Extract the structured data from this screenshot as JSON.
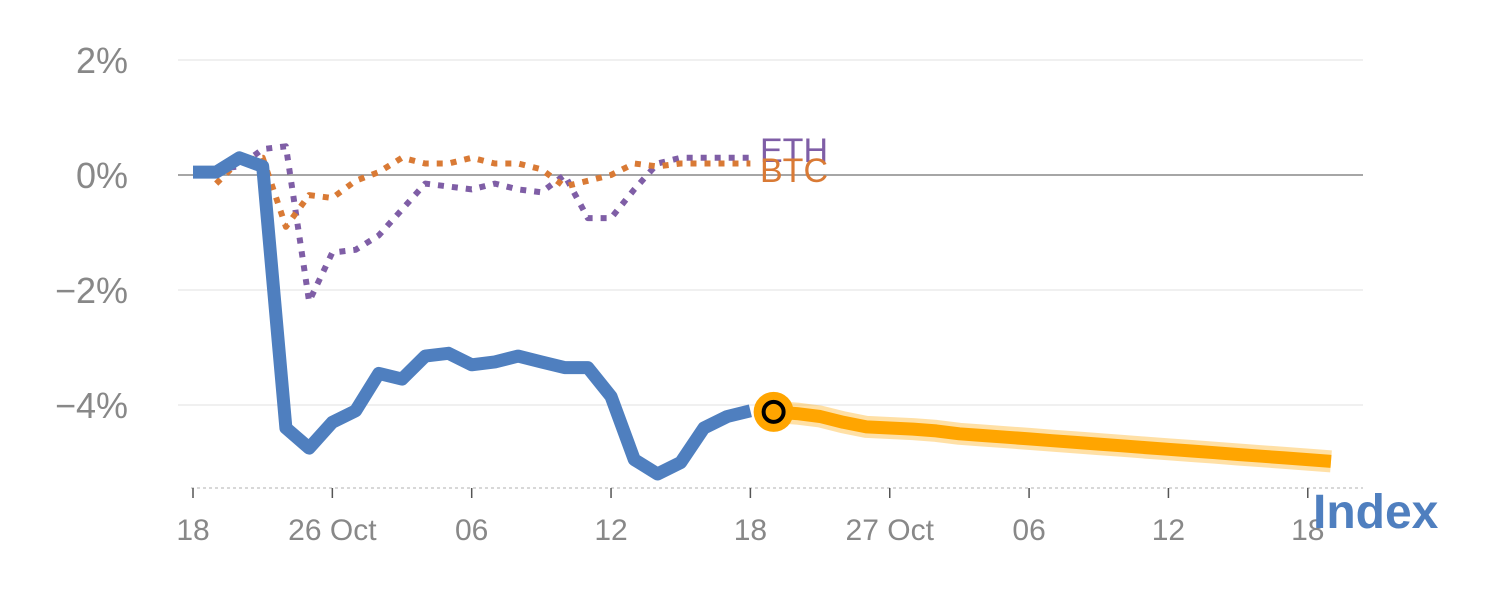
{
  "chart_data": {
    "type": "line",
    "title": "",
    "xlabel": "",
    "ylabel": "",
    "ylim": [
      -5.4,
      2.2
    ],
    "xlim": [
      0,
      49
    ],
    "y_ticks": [
      {
        "value": 2,
        "label": "2%"
      },
      {
        "value": 0,
        "label": "0%"
      },
      {
        "value": -2,
        "label": "−2%"
      },
      {
        "value": -4,
        "label": "−4%"
      }
    ],
    "x_ticks": [
      {
        "pos": 0,
        "label": "18"
      },
      {
        "pos": 6,
        "label": "26 Oct"
      },
      {
        "pos": 12,
        "label": "06"
      },
      {
        "pos": 18,
        "label": "12"
      },
      {
        "pos": 24,
        "label": "18"
      },
      {
        "pos": 30,
        "label": "27 Oct"
      },
      {
        "pos": 36,
        "label": "06"
      },
      {
        "pos": 42,
        "label": "12"
      },
      {
        "pos": 48,
        "label": "18"
      }
    ],
    "series": [
      {
        "name": "ETH",
        "style": "dotted",
        "color": "#7f5ea6",
        "x": [
          1,
          2,
          3,
          4,
          5,
          6,
          7,
          8,
          9,
          10,
          11,
          12,
          13,
          14,
          15,
          16,
          17,
          18,
          19,
          20,
          21,
          22,
          23,
          24
        ],
        "values": [
          0.1,
          0.15,
          0.45,
          0.5,
          -2.2,
          -1.35,
          -1.3,
          -1.05,
          -0.6,
          -0.15,
          -0.2,
          -0.25,
          -0.15,
          -0.25,
          -0.3,
          0.0,
          -0.75,
          -0.75,
          -0.25,
          0.2,
          0.3,
          0.3,
          0.3,
          0.3
        ]
      },
      {
        "name": "BTC",
        "style": "dotted",
        "color": "#d97a35",
        "x": [
          1,
          2,
          3,
          4,
          5,
          6,
          7,
          8,
          9,
          10,
          11,
          12,
          13,
          14,
          15,
          16,
          17,
          18,
          19,
          20,
          21,
          22,
          23,
          24
        ],
        "values": [
          -0.15,
          0.25,
          0.3,
          -0.9,
          -0.35,
          -0.4,
          -0.1,
          0.05,
          0.3,
          0.2,
          0.2,
          0.3,
          0.2,
          0.2,
          0.1,
          -0.2,
          -0.1,
          0.0,
          0.2,
          0.15,
          0.2,
          0.2,
          0.2,
          0.2
        ]
      },
      {
        "name": "Index",
        "style": "solid",
        "color": "#4f7fbf",
        "x": [
          0,
          1,
          2,
          3,
          4,
          5,
          6,
          7,
          8,
          9,
          10,
          11,
          12,
          13,
          14,
          15,
          16,
          17,
          18,
          19,
          20,
          21,
          22,
          23,
          24
        ],
        "values": [
          0.05,
          0.05,
          0.3,
          0.15,
          -4.4,
          -4.75,
          -4.3,
          -4.1,
          -3.45,
          -3.55,
          -3.15,
          -3.1,
          -3.3,
          -3.25,
          -3.15,
          -3.25,
          -3.35,
          -3.35,
          -3.85,
          -4.95,
          -5.2,
          -5.0,
          -4.4,
          -4.2,
          -4.1
        ]
      },
      {
        "name": "Index (projection)",
        "style": "highlight",
        "color": "#ffa500",
        "x": [
          25,
          26,
          27,
          28,
          29,
          30,
          31,
          32,
          33,
          34,
          35,
          36,
          37,
          38,
          39,
          40,
          41,
          42,
          43,
          44,
          45,
          46,
          47,
          48,
          49
        ],
        "values": [
          -4.12,
          -4.15,
          -4.2,
          -4.3,
          -4.38,
          -4.4,
          -4.42,
          -4.45,
          -4.5,
          -4.53,
          -4.56,
          -4.59,
          -4.62,
          -4.65,
          -4.68,
          -4.71,
          -4.74,
          -4.77,
          -4.8,
          -4.83,
          -4.86,
          -4.89,
          -4.92,
          -4.95,
          -4.98
        ]
      }
    ],
    "marker": {
      "x": 25,
      "y": -4.12
    },
    "labels": {
      "eth": "ETH",
      "btc": "BTC",
      "index": "Index"
    },
    "colors": {
      "grid": "#e6e6e6",
      "zero": "#888888",
      "axis": "#cccccc",
      "marker_fill": "#ffa500"
    }
  }
}
